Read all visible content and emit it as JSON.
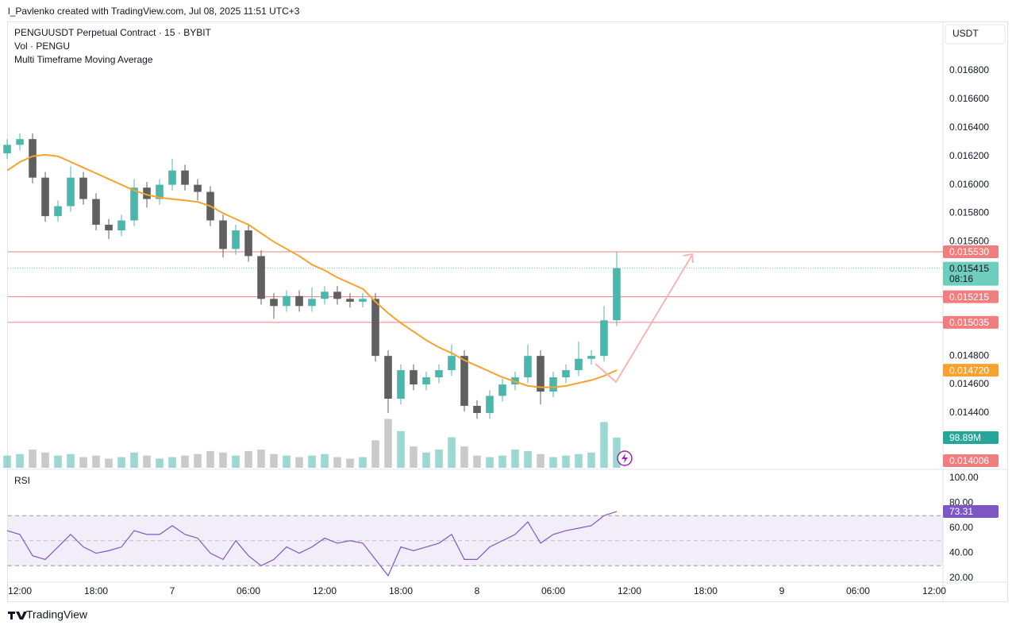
{
  "header": {
    "text": "l_Pavlenko created with TradingView.com, Jul 08, 2025 11:51 UTC+3"
  },
  "brand": "TradingView",
  "chart_data": {
    "type": "candlestick",
    "title": "PENGUUSDT Perpetual Contract · 15 · BYBIT",
    "axis_unit": "USDT",
    "up_color": "#4db6ac",
    "down_color": "#5f5f5f",
    "x": [
      -1,
      0,
      1,
      2,
      3,
      4,
      5,
      6,
      7,
      8,
      9,
      10,
      11,
      12,
      13,
      14,
      15,
      16,
      17,
      18,
      19,
      20,
      21,
      22,
      23,
      24,
      25,
      26,
      27,
      28,
      29,
      30,
      31,
      32,
      33,
      34,
      35,
      36,
      37,
      38,
      39,
      40,
      41,
      42,
      43,
      44,
      45,
      46,
      47
    ],
    "open": [
      0.01622,
      0.01628,
      0.01632,
      0.01605,
      0.01578,
      0.01585,
      0.01605,
      0.0159,
      0.01572,
      0.01568,
      0.01575,
      0.01598,
      0.0159,
      0.016,
      0.0161,
      0.016,
      0.01595,
      0.01575,
      0.01555,
      0.01568,
      0.0155,
      0.0152,
      0.01515,
      0.01522,
      0.01515,
      0.0152,
      0.01525,
      0.0152,
      0.01518,
      0.0152,
      0.0148,
      0.0145,
      0.0147,
      0.0146,
      0.01465,
      0.0147,
      0.0148,
      0.01445,
      0.0144,
      0.01452,
      0.0146,
      0.01465,
      0.0148,
      0.01455,
      0.01465,
      0.0147,
      0.01478,
      0.0148,
      0.01505
    ],
    "high": [
      0.01632,
      0.01636,
      0.01636,
      0.01609,
      0.01589,
      0.01613,
      0.01609,
      0.01594,
      0.01576,
      0.01579,
      0.01604,
      0.01602,
      0.01604,
      0.01618,
      0.01614,
      0.01604,
      0.01599,
      0.01579,
      0.01572,
      0.01572,
      0.01554,
      0.01524,
      0.01526,
      0.01526,
      0.01528,
      0.01529,
      0.01529,
      0.01524,
      0.01524,
      0.01524,
      0.01484,
      0.01474,
      0.01474,
      0.01469,
      0.01474,
      0.01488,
      0.01484,
      0.01449,
      0.01456,
      0.01464,
      0.01469,
      0.01488,
      0.01484,
      0.01469,
      0.01474,
      0.0149,
      0.01484,
      0.01515,
      0.01553
    ],
    "low": [
      0.01618,
      0.01624,
      0.01601,
      0.01574,
      0.01574,
      0.01581,
      0.01586,
      0.01568,
      0.01562,
      0.01564,
      0.01571,
      0.01584,
      0.01586,
      0.01596,
      0.01596,
      0.01589,
      0.01571,
      0.01549,
      0.01551,
      0.01546,
      0.01516,
      0.01506,
      0.01511,
      0.01511,
      0.01511,
      0.01516,
      0.01516,
      0.01514,
      0.01514,
      0.01476,
      0.0144,
      0.01446,
      0.01456,
      0.01456,
      0.01461,
      0.01466,
      0.01441,
      0.01436,
      0.01436,
      0.01448,
      0.01456,
      0.01461,
      0.01446,
      0.01451,
      0.01461,
      0.01466,
      0.01474,
      0.01476,
      0.01501
    ],
    "close": [
      0.01628,
      0.01632,
      0.01605,
      0.01578,
      0.01585,
      0.01605,
      0.0159,
      0.01572,
      0.01568,
      0.01575,
      0.01598,
      0.0159,
      0.016,
      0.0161,
      0.016,
      0.01595,
      0.01575,
      0.01555,
      0.01568,
      0.0155,
      0.0152,
      0.01515,
      0.01522,
      0.01515,
      0.0152,
      0.01525,
      0.0152,
      0.01518,
      0.0152,
      0.0148,
      0.0145,
      0.0147,
      0.0146,
      0.01465,
      0.0147,
      0.0148,
      0.01445,
      0.0144,
      0.01452,
      0.0146,
      0.01465,
      0.0148,
      0.01455,
      0.01465,
      0.0147,
      0.01478,
      0.0148,
      0.01505,
      0.015415
    ],
    "xlim": [
      -0.94,
      72.69
    ],
    "xticks": [
      {
        "value": 0,
        "label": "12:00"
      },
      {
        "value": 6,
        "label": "18:00"
      },
      {
        "value": 12,
        "label": "7"
      },
      {
        "value": 18,
        "label": "06:00"
      },
      {
        "value": 24,
        "label": "12:00"
      },
      {
        "value": 30,
        "label": "18:00"
      },
      {
        "value": 36,
        "label": "8"
      },
      {
        "value": 42,
        "label": "06:00"
      },
      {
        "value": 48,
        "label": "12:00"
      },
      {
        "value": 54,
        "label": "18:00"
      },
      {
        "value": 60,
        "label": "9"
      },
      {
        "value": 66,
        "label": "06:00"
      },
      {
        "value": 72,
        "label": "12:00"
      }
    ],
    "ylim": [
      0.01401,
      0.017145
    ],
    "yticks": [
      {
        "value": 0.0168,
        "label": "0.016800"
      },
      {
        "value": 0.0166,
        "label": "0.016600"
      },
      {
        "value": 0.0164,
        "label": "0.016400"
      },
      {
        "value": 0.0162,
        "label": "0.016200"
      },
      {
        "value": 0.016,
        "label": "0.016000"
      },
      {
        "value": 0.0158,
        "label": "0.015800"
      },
      {
        "value": 0.0156,
        "label": "0.015600"
      },
      {
        "value": 0.0148,
        "label": "0.014800"
      },
      {
        "value": 0.0146,
        "label": "0.014600"
      },
      {
        "value": 0.0144,
        "label": "0.014400"
      }
    ],
    "price_lines": [
      {
        "value": 0.01553,
        "label": "0.015530",
        "color": "#f07e7e"
      },
      {
        "value": 0.015215,
        "label": "0.015215",
        "color": "#f07e7e"
      },
      {
        "value": 0.015035,
        "label": "0.015035",
        "color": "#f07e7e"
      }
    ],
    "current_price": {
      "value": 0.015415,
      "label": "0.015415",
      "countdown": "08:16",
      "color": "#6fcdbd"
    },
    "low_marker": {
      "value": 0.014006,
      "label": "0.014006",
      "color": "#f07e7e"
    },
    "volume": {
      "name": "Vol · PENGU",
      "ylim": [
        0,
        260
      ],
      "values": [
        40,
        45,
        60,
        50,
        40,
        45,
        35,
        40,
        30,
        35,
        50,
        40,
        30,
        35,
        40,
        45,
        55,
        50,
        40,
        55,
        60,
        45,
        40,
        35,
        40,
        45,
        35,
        30,
        35,
        90,
        160,
        120,
        70,
        50,
        60,
        100,
        70,
        40,
        35,
        40,
        60,
        55,
        45,
        35,
        40,
        45,
        50,
        150,
        98.89
      ],
      "last_label": "98.89M"
    },
    "moving_average": {
      "name": "Multi Timeframe Moving Average",
      "color": "#f7a22e",
      "label": "0.014720",
      "values": [
        0.0161,
        0.01616,
        0.0162,
        0.01621,
        0.0162,
        0.01616,
        0.01612,
        0.01608,
        0.01604,
        0.016,
        0.01596,
        0.01593,
        0.01591,
        0.0159,
        0.01589,
        0.01588,
        0.01585,
        0.0158,
        0.01576,
        0.01572,
        0.01566,
        0.0156,
        0.01555,
        0.0155,
        0.01544,
        0.0154,
        0.01535,
        0.01531,
        0.01527,
        0.01518,
        0.0151,
        0.01503,
        0.01497,
        0.01491,
        0.01486,
        0.01482,
        0.01477,
        0.01473,
        0.01469,
        0.01465,
        0.01462,
        0.01459,
        0.01458,
        0.01458,
        0.01459,
        0.01461,
        0.01463,
        0.01466,
        0.0147
      ]
    },
    "rsi": {
      "name": "RSI",
      "color": "#7e57c2",
      "last_label": "73.31",
      "ylim": [
        17.5,
        106.3
      ],
      "bands": [
        30,
        50,
        70
      ],
      "yticks": [
        {
          "value": 100,
          "label": "100.00"
        },
        {
          "value": 80,
          "label": "80.00"
        },
        {
          "value": 60,
          "label": "60.00"
        },
        {
          "value": 40,
          "label": "40.00"
        },
        {
          "value": 20,
          "label": "20.00"
        }
      ],
      "values": [
        58,
        55,
        38,
        35,
        45,
        55,
        45,
        40,
        42,
        45,
        58,
        55,
        55,
        62,
        55,
        52,
        40,
        35,
        50,
        38,
        30,
        35,
        45,
        40,
        45,
        52,
        48,
        50,
        48,
        35,
        22,
        45,
        42,
        45,
        48,
        55,
        35,
        35,
        45,
        50,
        55,
        65,
        48,
        55,
        58,
        60,
        62,
        70,
        73.31
      ]
    }
  }
}
